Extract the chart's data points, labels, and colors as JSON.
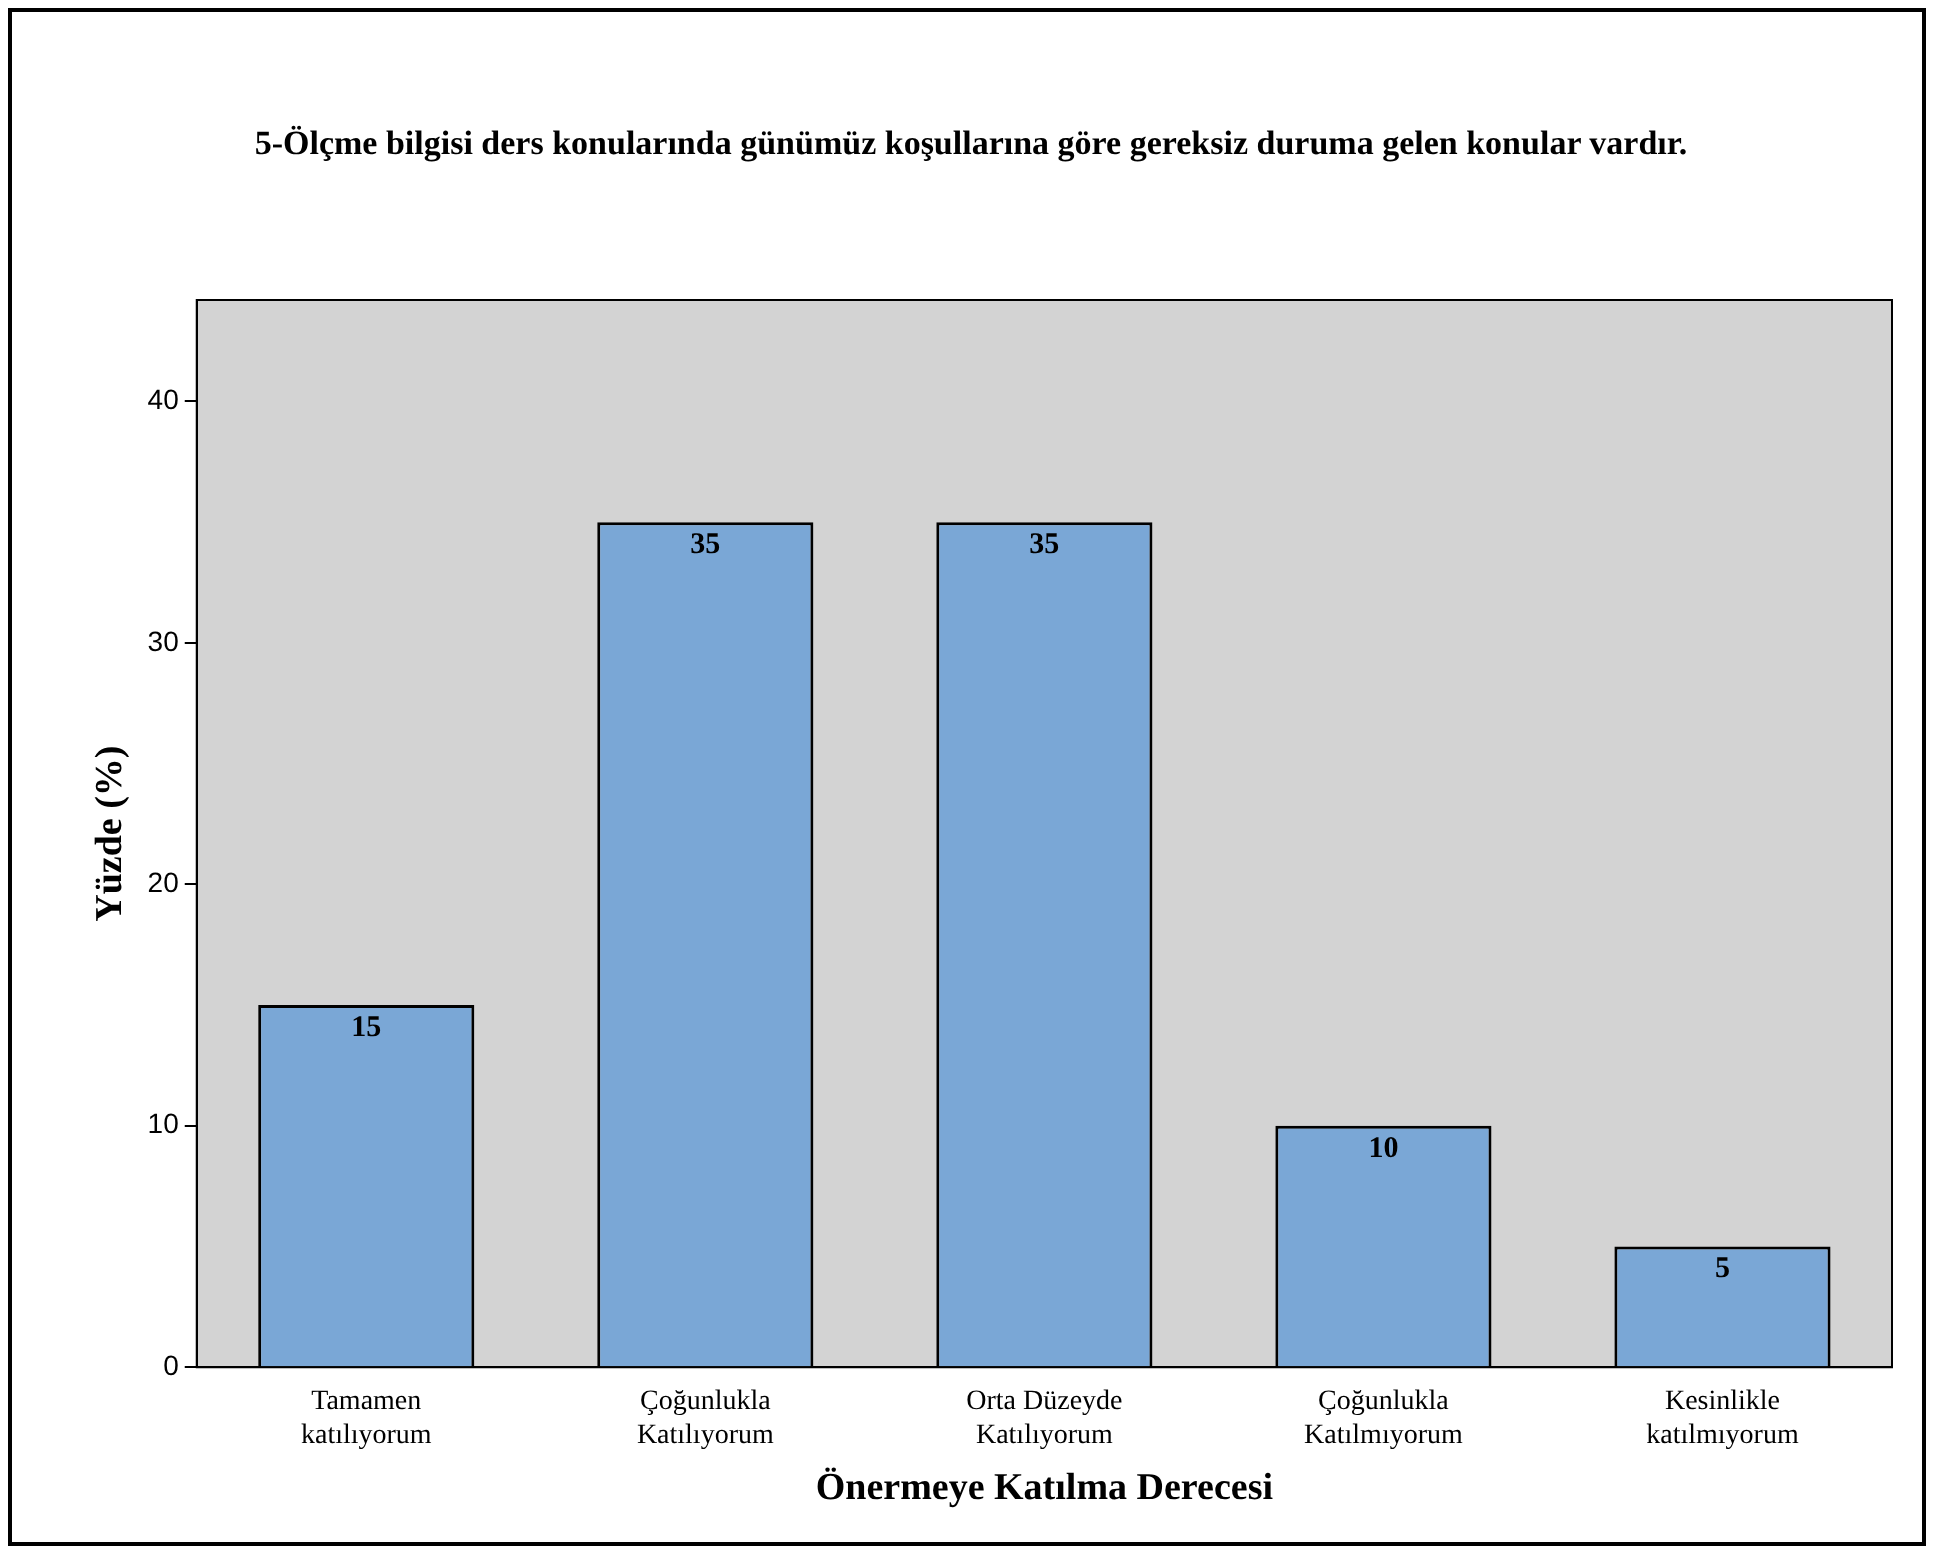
{
  "chart_data": {
    "type": "bar",
    "title": "5-Ölçme bilgisi ders konularında günümüz koşullarına göre gereksiz duruma gelen konular vardır.",
    "xlabel": "Önermeye Katılma Derecesi",
    "ylabel": "Yüzde (%)",
    "categories": [
      "Tamamen\nkatılıyorum",
      "Çoğunlukla\nKatılıyorum",
      "Orta Düzeyde\nKatılıyorum",
      "Çoğunlukla\nKatılmıyorum",
      "Kesinlikle\nkatılmıyorum"
    ],
    "values": [
      15,
      35,
      35,
      10,
      5
    ],
    "color": "#7aa7d6",
    "data_labels": true,
    "ylim": [
      0,
      44.2
    ],
    "yticks": [
      0,
      10,
      20,
      30,
      40
    ],
    "grid": false,
    "legend": false
  }
}
